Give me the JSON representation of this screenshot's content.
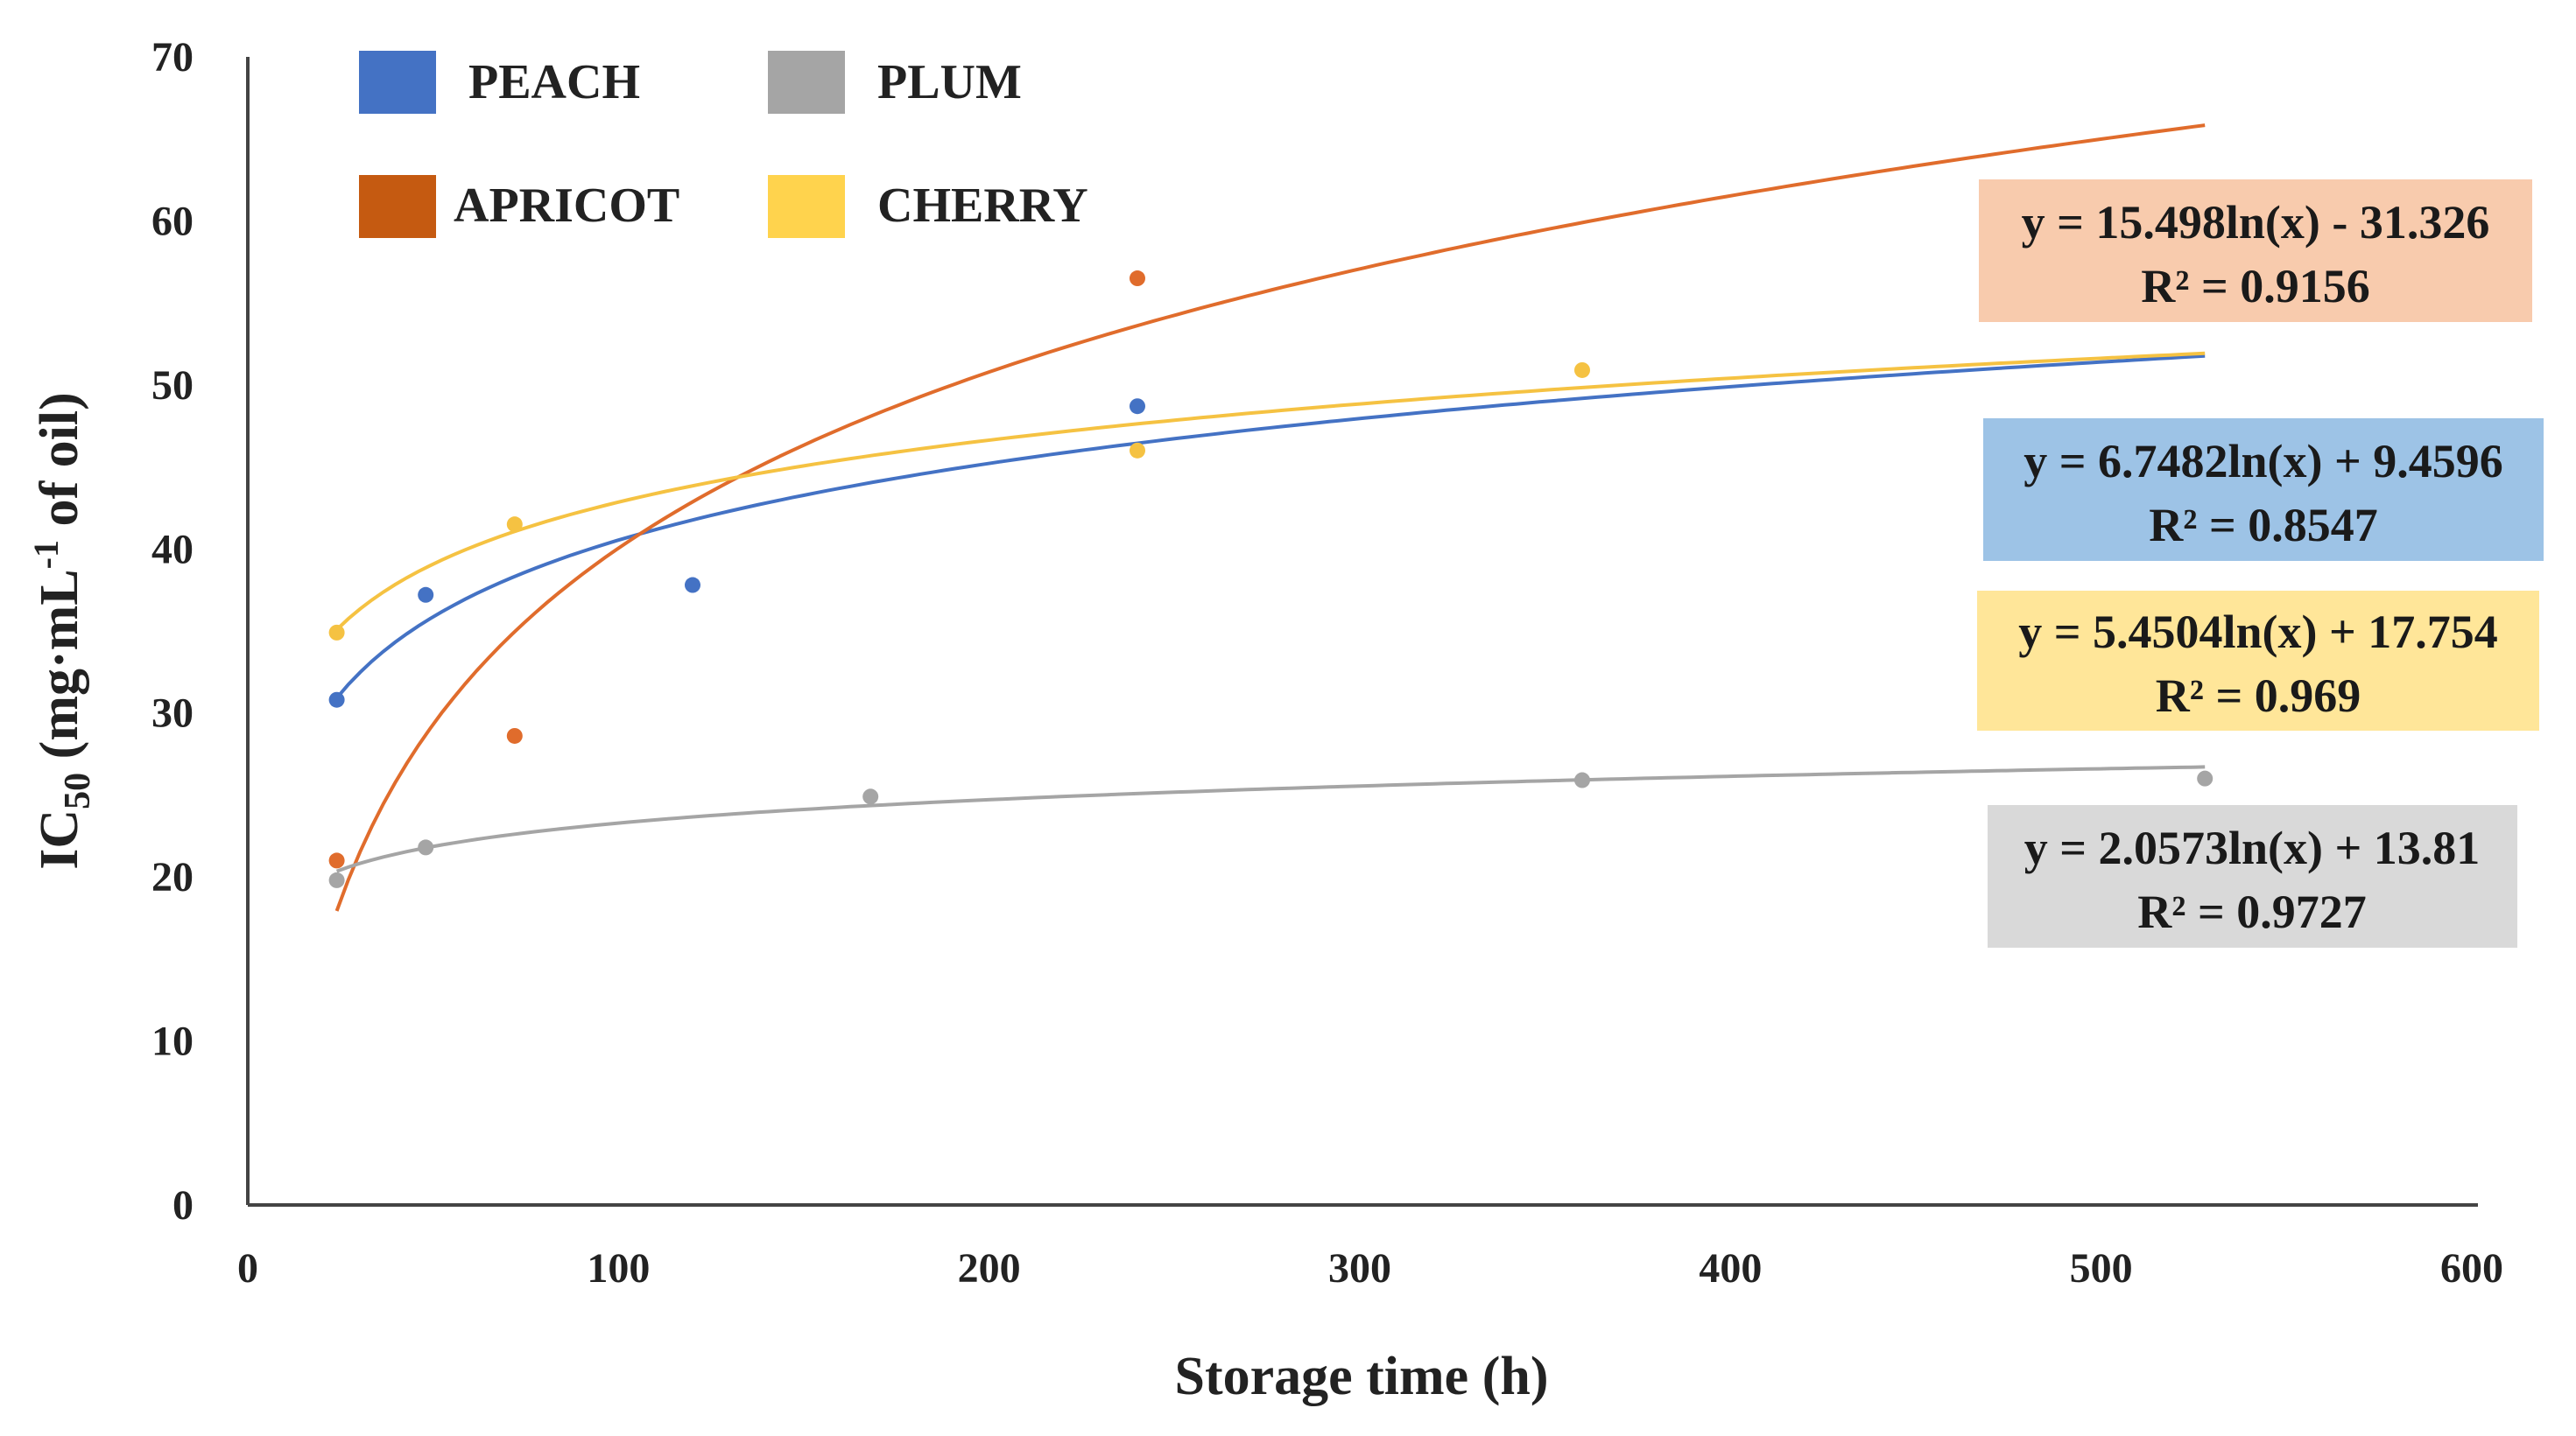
{
  "chart_data": {
    "type": "scatter",
    "title": "",
    "xlabel": "Storage time (h)",
    "ylabel_main": "IC",
    "ylabel_sub": "50",
    "ylabel_rest": " (mg·mL",
    "ylabel_sup": "-1",
    "ylabel_end": " of oil)",
    "xlim": [
      0,
      600
    ],
    "ylim": [
      0,
      70
    ],
    "xticks": [
      "0",
      "100",
      "200",
      "300",
      "400",
      "500",
      "600"
    ],
    "yticks": [
      "0",
      "10",
      "20",
      "30",
      "40",
      "50",
      "60",
      "70"
    ],
    "grid": false,
    "legend_position": "top-left",
    "trend_x_range": [
      24,
      528
    ],
    "series": [
      {
        "name": "PEACH",
        "color": "#4472c4",
        "x": [
          24,
          48,
          120,
          240
        ],
        "y": [
          30.8,
          37.2,
          37.8,
          48.7
        ],
        "trend": {
          "a": 6.7482,
          "b": 9.4596
        },
        "equation": "y = 6.7482ln(x) + 9.4596",
        "r2": "R² = 0.8547",
        "label_bg": "#9dc3e6"
      },
      {
        "name": "APRICOT",
        "color": "#e06c2c",
        "x": [
          24,
          72,
          240
        ],
        "y": [
          21.0,
          28.6,
          56.5
        ],
        "trend": {
          "a": 15.498,
          "b": -31.326
        },
        "equation": "y = 15.498ln(x) - 31.326",
        "r2": "R² = 0.9156",
        "label_bg": "#f8cbad"
      },
      {
        "name": "PLUM",
        "color": "#a5a5a5",
        "x": [
          24,
          48,
          168,
          360,
          528
        ],
        "y": [
          19.8,
          21.8,
          24.9,
          25.9,
          26.0
        ],
        "trend": {
          "a": 2.0573,
          "b": 13.81
        },
        "equation": "y = 2.0573ln(x) + 13.81",
        "r2": "R² = 0.9727",
        "label_bg": "#d9d9d9"
      },
      {
        "name": "CHERRY",
        "color": "#f5c242",
        "x": [
          24,
          72,
          240,
          360
        ],
        "y": [
          34.9,
          41.5,
          46.0,
          50.9
        ],
        "trend": {
          "a": 5.4504,
          "b": 17.754
        },
        "equation": "y = 5.4504ln(x) + 17.754",
        "r2": "R² = 0.969",
        "label_bg": "#ffe699"
      }
    ]
  }
}
